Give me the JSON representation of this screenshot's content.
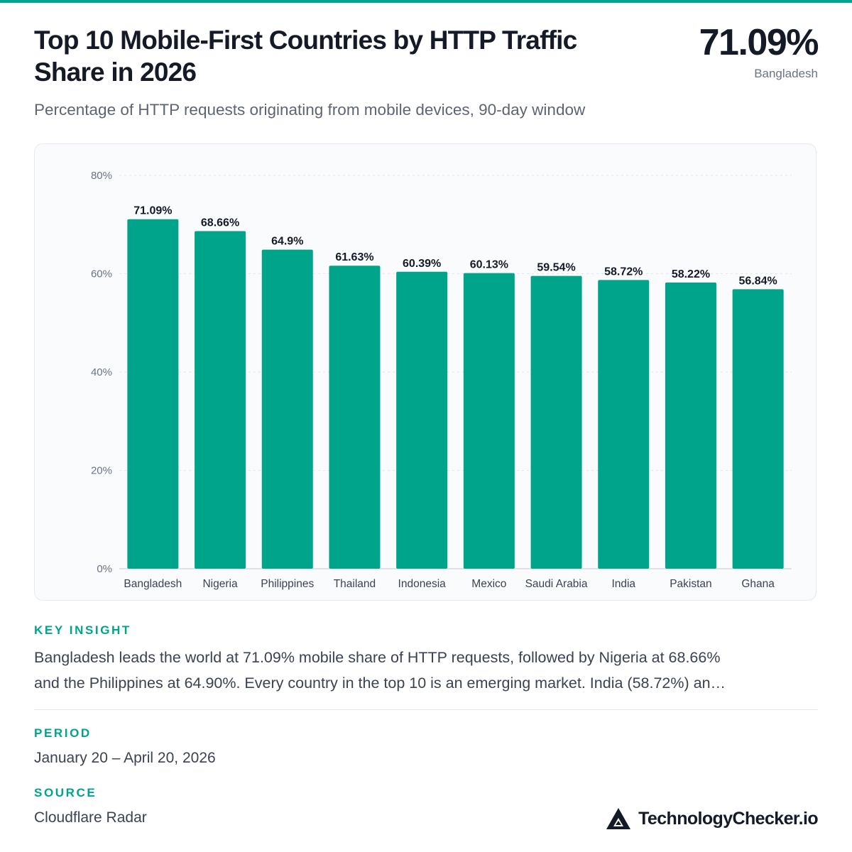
{
  "header": {
    "title_line1": "Top 10 Mobile-First Countries by HTTP Traffic",
    "title_line2": "Share in 2026",
    "headline_value": "71.09%",
    "headline_label": "Bangladesh",
    "subtitle": "Percentage of HTTP requests originating from mobile devices, 90-day window"
  },
  "colors": {
    "accent": "#00a48a",
    "bar": "#00a48a",
    "text_dark": "#141a26",
    "text_muted": "#6b7383"
  },
  "chart_data": {
    "type": "bar",
    "categories": [
      "Bangladesh",
      "Nigeria",
      "Philippines",
      "Thailand",
      "Indonesia",
      "Mexico",
      "Saudi Arabia",
      "India",
      "Pakistan",
      "Ghana"
    ],
    "values": [
      71.09,
      68.66,
      64.9,
      61.63,
      60.39,
      60.13,
      59.54,
      58.72,
      58.22,
      56.84
    ],
    "data_labels": [
      "71.09%",
      "68.66%",
      "64.9%",
      "61.63%",
      "60.39%",
      "60.13%",
      "59.54%",
      "58.72%",
      "58.22%",
      "56.84%"
    ],
    "y_ticks": [
      0,
      20,
      40,
      60,
      80
    ],
    "y_tick_labels": [
      "0%",
      "20%",
      "40%",
      "60%",
      "80%"
    ],
    "ylim": [
      0,
      80
    ],
    "grid": true,
    "title": "",
    "xlabel": "",
    "ylabel": ""
  },
  "insight": {
    "label": "KEY INSIGHT",
    "line1": "Bangladesh leads the world at 71.09% mobile share of HTTP requests, followed by Nigeria at 68.66%",
    "line2": "and the Philippines at 64.90%. Every country in the top 10 is an emerging market. India (58.72%) an…"
  },
  "period": {
    "label": "PERIOD",
    "value": "January 20 – April 20, 2026"
  },
  "source": {
    "label": "SOURCE",
    "value": "Cloudflare Radar"
  },
  "brand": {
    "name": "TechnologyChecker.io",
    "icon": "triangle-logo-icon"
  }
}
